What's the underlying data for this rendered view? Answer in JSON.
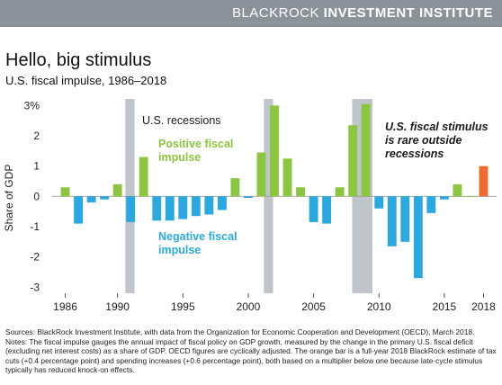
{
  "brand": {
    "part1": "BLACKROCK",
    "part2": "INVESTMENT INSTITUTE"
  },
  "title": "Hello, big stimulus",
  "subtitle": "U.S. fiscal impulse, 1986–2018",
  "colors": {
    "positive": "#8cc63f",
    "negative": "#29a9e0",
    "estimate": "#ec6b2d",
    "recession": "#bfc5cb",
    "brandbar": "#8b929a"
  },
  "chart_data": {
    "type": "bar",
    "ylabel": "Share of GDP",
    "ylim": [
      -3.2,
      3.1
    ],
    "xlim": [
      1985,
      2019
    ],
    "yticks": [
      {
        "v": 3,
        "label": "3%"
      },
      {
        "v": 2,
        "label": "2"
      },
      {
        "v": 1,
        "label": "1"
      },
      {
        "v": 0,
        "label": "0"
      },
      {
        "v": -1,
        "label": "-1"
      },
      {
        "v": -2,
        "label": "-2"
      },
      {
        "v": -3,
        "label": "-3"
      }
    ],
    "xticks": [
      {
        "v": 1986,
        "label": "1986"
      },
      {
        "v": 1990,
        "label": "1990"
      },
      {
        "v": 1995,
        "label": "1995"
      },
      {
        "v": 2000,
        "label": "2000"
      },
      {
        "v": 2005,
        "label": "2005"
      },
      {
        "v": 2010,
        "label": "2010"
      },
      {
        "v": 2015,
        "label": "2015"
      },
      {
        "v": 2018,
        "label": "2018"
      }
    ],
    "recessions": [
      {
        "start": 1990.6,
        "end": 1991.3
      },
      {
        "start": 2001.2,
        "end": 2001.9
      },
      {
        "start": 2007.95,
        "end": 2009.5
      }
    ],
    "bars": [
      {
        "year": 1986,
        "value": 0.3
      },
      {
        "year": 1987,
        "value": -0.9
      },
      {
        "year": 1988,
        "value": -0.2
      },
      {
        "year": 1989,
        "value": -0.1
      },
      {
        "year": 1990,
        "value": 0.4
      },
      {
        "year": 1991,
        "value": -0.85
      },
      {
        "year": 1992,
        "value": 1.3
      },
      {
        "year": 1993,
        "value": -0.8
      },
      {
        "year": 1994,
        "value": -0.8
      },
      {
        "year": 1995,
        "value": -0.75
      },
      {
        "year": 1996,
        "value": -0.65
      },
      {
        "year": 1997,
        "value": -0.6
      },
      {
        "year": 1998,
        "value": -0.45
      },
      {
        "year": 1999,
        "value": 0.6
      },
      {
        "year": 2000,
        "value": -0.05
      },
      {
        "year": 2001,
        "value": 1.45
      },
      {
        "year": 2002,
        "value": 3.0
      },
      {
        "year": 2003,
        "value": 1.25
      },
      {
        "year": 2004,
        "value": 0.3
      },
      {
        "year": 2005,
        "value": -0.85
      },
      {
        "year": 2006,
        "value": -0.9
      },
      {
        "year": 2007,
        "value": 0.3
      },
      {
        "year": 2008,
        "value": 2.35
      },
      {
        "year": 2009,
        "value": 3.05
      },
      {
        "year": 2010,
        "value": -0.4
      },
      {
        "year": 2011,
        "value": -1.65
      },
      {
        "year": 2012,
        "value": -1.5
      },
      {
        "year": 2013,
        "value": -2.7
      },
      {
        "year": 2014,
        "value": -0.55
      },
      {
        "year": 2015,
        "value": -0.1
      },
      {
        "year": 2016,
        "value": 0.4
      },
      {
        "year": 2017,
        "value": 0.0
      },
      {
        "year": 2018,
        "value": 1.0,
        "estimate": true
      }
    ],
    "annotations": {
      "recessions": "U.S. recessions",
      "positive": [
        "Positive fiscal",
        "impulse"
      ],
      "negative": [
        "Negative fiscal",
        "impulse"
      ],
      "rare": [
        "U.S. fiscal stimulus",
        "is rare outside",
        "recessions"
      ]
    }
  },
  "notes": {
    "sources": "Sources: BlackRock Investment Institute, with data from the Organization for Economic Cooperation and Development (OECD), March 2018.",
    "notes": "Notes: The fiscal impulse gauges the annual impact of fiscal policy on GDP growth, measured by the change in the primary U.S. fiscal deficit (excluding net interest costs) as a share of GDP. OECD figures are cyclically adjusted. The orange bar is a full-year 2018 BlackRock estimate of tax cuts (+0.4 percentage point) and spending increases (+0.6 percentage point), both based on a multiplier below one because late-cycle stimulus typically has reduced knock-on effects."
  }
}
